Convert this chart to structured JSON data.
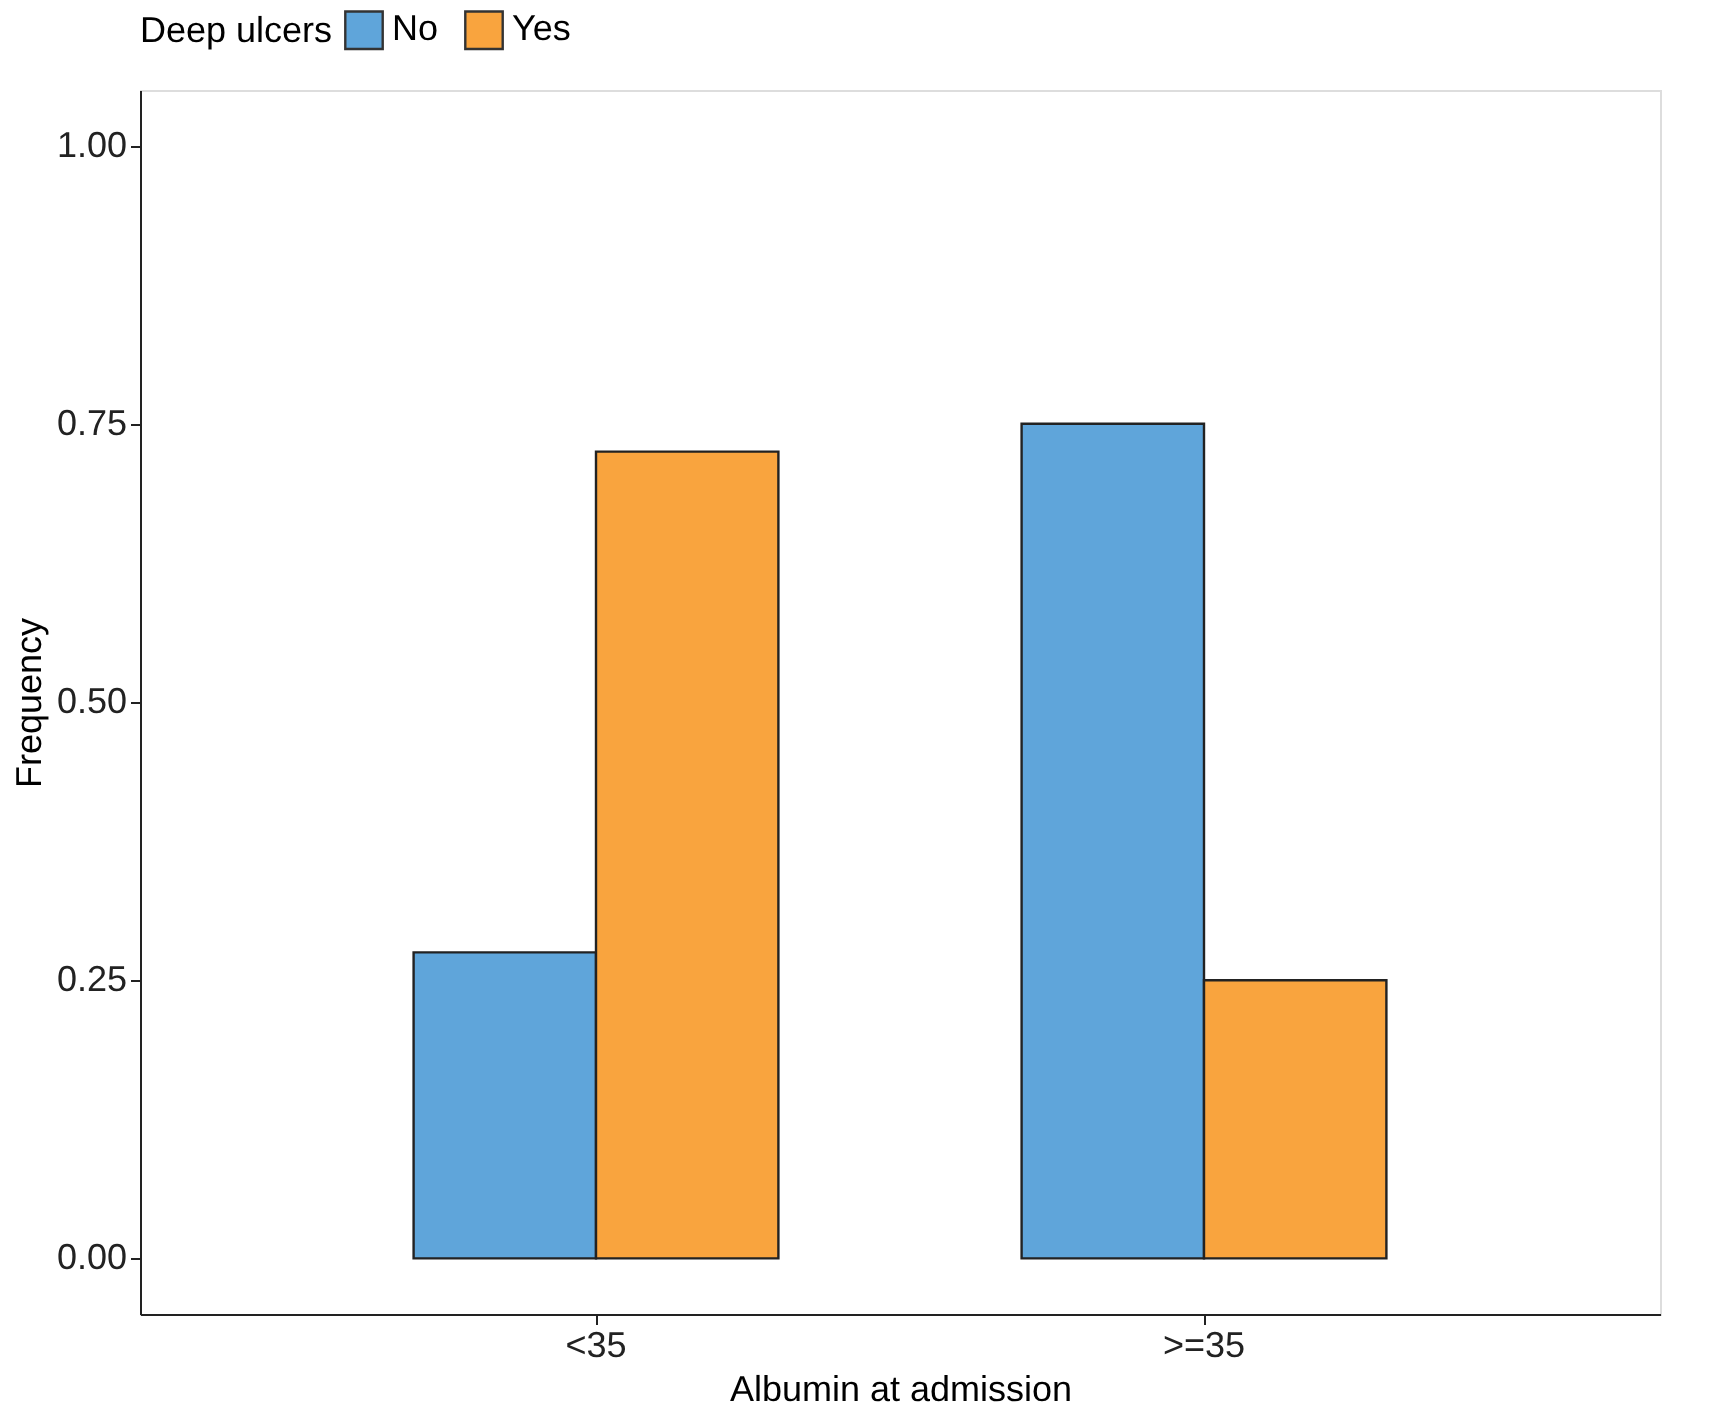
{
  "chart_data": {
    "type": "bar",
    "xlabel": "Albumin at admission",
    "ylabel": "Frequency",
    "legend_title": "Deep ulcers",
    "categories": [
      "<35",
      ">=35"
    ],
    "series": [
      {
        "name": "No",
        "color": "#5fa5da",
        "values": [
          0.275,
          0.75
        ]
      },
      {
        "name": "Yes",
        "color": "#f9a43e",
        "values": [
          0.725,
          0.25
        ]
      }
    ],
    "ylim": [
      -0.05,
      1.05
    ],
    "yticks": [
      {
        "value": 0,
        "label": "0.00"
      },
      {
        "value": 0.25,
        "label": "0.25"
      },
      {
        "value": 0.5,
        "label": "0.50"
      },
      {
        "value": 0.75,
        "label": "0.75"
      },
      {
        "value": 1,
        "label": "1.00"
      }
    ],
    "grid": false,
    "legend": "top"
  }
}
